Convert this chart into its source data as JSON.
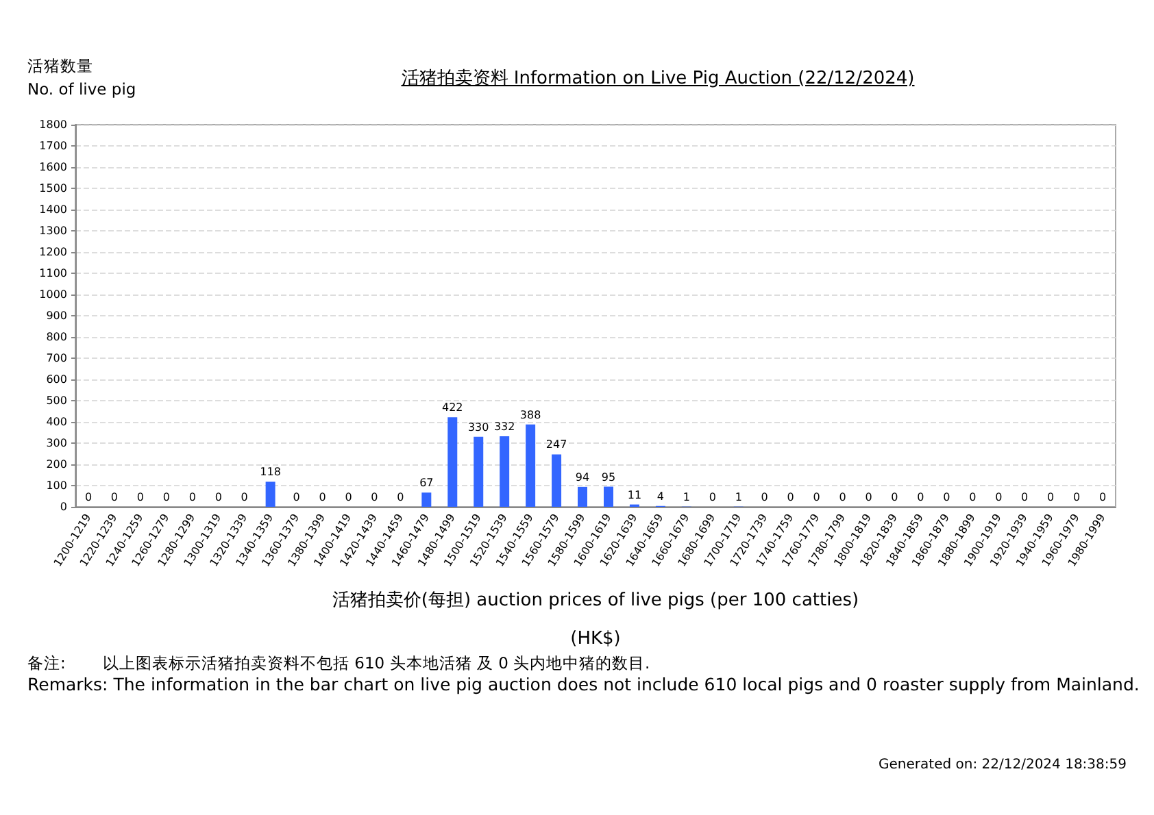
{
  "chart_data": {
    "type": "bar",
    "title": "活猪拍卖资料 Information on Live Pig Auction (22/12/2024)",
    "ylabel": "活猪数量\nNo. of live pig",
    "xlabel": "活猪拍卖价(每担) auction prices of live pigs (per 100 catties)\n(HK$)",
    "categories": [
      "1200-1219",
      "1220-1239",
      "1240-1259",
      "1260-1279",
      "1280-1299",
      "1300-1319",
      "1320-1339",
      "1340-1359",
      "1360-1379",
      "1380-1399",
      "1400-1419",
      "1420-1439",
      "1440-1459",
      "1460-1479",
      "1480-1499",
      "1500-1519",
      "1520-1539",
      "1540-1559",
      "1560-1579",
      "1580-1599",
      "1600-1619",
      "1620-1639",
      "1640-1659",
      "1660-1679",
      "1680-1699",
      "1700-1719",
      "1720-1739",
      "1740-1759",
      "1760-1779",
      "1780-1799",
      "1800-1819",
      "1820-1839",
      "1840-1859",
      "1860-1879",
      "1880-1899",
      "1900-1919",
      "1920-1939",
      "1940-1959",
      "1960-1979",
      "1980-1999"
    ],
    "values": [
      0,
      0,
      0,
      0,
      0,
      0,
      0,
      118,
      0,
      0,
      0,
      0,
      0,
      67,
      422,
      330,
      332,
      388,
      247,
      94,
      95,
      11,
      4,
      1,
      0,
      1,
      0,
      0,
      0,
      0,
      0,
      0,
      0,
      0,
      0,
      0,
      0,
      0,
      0,
      0
    ],
    "color": "#3366ff",
    "ylim": [
      0,
      1800
    ],
    "yticks": [
      0,
      100,
      200,
      300,
      400,
      500,
      600,
      700,
      800,
      900,
      1000,
      1100,
      1200,
      1300,
      1400,
      1500,
      1600,
      1700,
      1800
    ],
    "grid": "y",
    "data_labels": true,
    "annotations": [
      "备注:",
      "以上图表标示活猪拍卖资料不包括 610 头本地活猪 及 0 头内地中猪的数目.",
      "Remarks: The information in the bar chart on live pig auction does not include 610 local pigs and 0 roaster supply from Mainland.",
      "Generated on: 22/12/2024 18:38:59"
    ]
  }
}
